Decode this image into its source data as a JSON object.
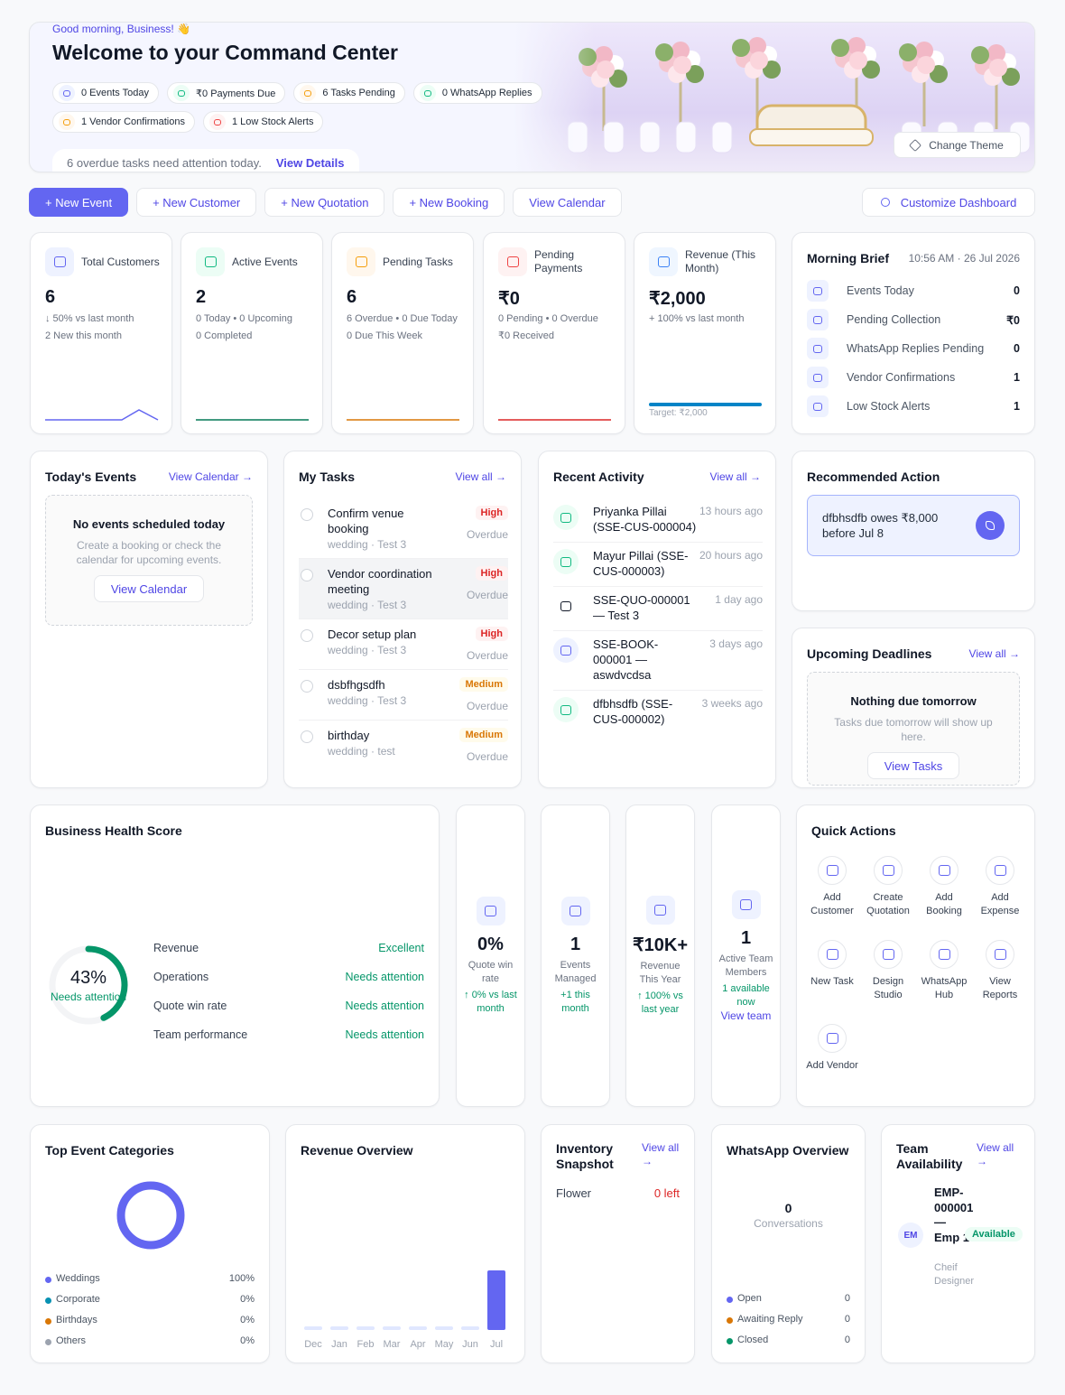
{
  "header": {
    "greeting": "Good morning, Business! 👋",
    "title": "Welcome to your Command Center",
    "chips": [
      "0 Events Today",
      "₹0 Payments Due",
      "6 Tasks Pending",
      "0 WhatsApp Replies",
      "1 Vendor Confirmations",
      "1 Low Stock Alerts"
    ],
    "alert": "6 overdue tasks need attention today.",
    "alert_link": "View Details",
    "theme_button": "Change Theme"
  },
  "actions": [
    "+ New Event",
    "+ New Customer",
    "+ New Quotation",
    "+ New Booking",
    "View Calendar"
  ],
  "customize": "Customize Dashboard",
  "stats": [
    {
      "label": "Total Customers",
      "value": 6,
      "lines": [
        "↓ 50% vs last month",
        "2 New this month"
      ]
    },
    {
      "label": "Active Events",
      "value": 2,
      "lines": [
        "0 Today • 0 Upcoming",
        "0 Completed"
      ]
    },
    {
      "label": "Pending Tasks",
      "value": 6,
      "lines": [
        "6 Overdue • 0 Due Today",
        "0 Due This Week"
      ]
    },
    {
      "label": "Pending Payments",
      "value": "₹0",
      "lines": [
        "0 Pending • 0 Overdue",
        "₹0 Received"
      ]
    },
    {
      "label": "Revenue (This Month)",
      "value": "₹2,000",
      "lines": [
        "+ 100% vs last month"
      ],
      "target": "Target: ₹2,000"
    }
  ],
  "morning_brief": {
    "title": "Morning Brief",
    "time": "10:56 AM · 26 Jul 2026",
    "items": [
      {
        "label": "Events Today",
        "value": 0
      },
      {
        "label": "Pending Collection",
        "value": "₹0"
      },
      {
        "label": "WhatsApp Replies Pending",
        "value": 0
      },
      {
        "label": "Vendor Confirmations",
        "value": 1
      },
      {
        "label": "Low Stock Alerts",
        "value": 1
      }
    ]
  },
  "todays_events": {
    "title": "Today's Events",
    "link": "View Calendar →",
    "empty_title": "No events scheduled today",
    "empty_text": "Create a booking or check the calendar for upcoming events.",
    "button": "View Calendar"
  },
  "my_tasks": {
    "title": "My Tasks",
    "link": "View all →",
    "tasks": [
      {
        "title": "Confirm venue booking",
        "meta": "wedding · Test 3",
        "priority": "High",
        "status": "Overdue"
      },
      {
        "title": "Vendor coordination meeting",
        "meta": "wedding · Test 3",
        "priority": "High",
        "status": "Overdue"
      },
      {
        "title": "Decor setup plan",
        "meta": "wedding · Test 3",
        "priority": "High",
        "status": "Overdue"
      },
      {
        "title": "dsbfhgsdfh",
        "meta": "wedding · Test 3",
        "priority": "Medium",
        "status": "Overdue"
      },
      {
        "title": "birthday",
        "meta": "wedding · test",
        "priority": "Medium",
        "status": "Overdue"
      }
    ]
  },
  "recent_activity": {
    "title": "Recent Activity",
    "link": "View all →",
    "items": [
      {
        "text": "Priyanka Pillai (SSE-CUS-000004)",
        "time": "13 hours ago"
      },
      {
        "text": "Mayur Pillai (SSE-CUS-000003)",
        "time": "20 hours ago"
      },
      {
        "text": "SSE-QUO-000001 — Test 3",
        "time": "1 day ago"
      },
      {
        "text": "SSE-BOOK-000001 — aswdvcdsa",
        "time": "3 days ago"
      },
      {
        "text": "dfbhsdfb (SSE-CUS-000002)",
        "time": "3 weeks ago"
      }
    ]
  },
  "recommended": {
    "title": "Recommended Action",
    "text": "dfbhsdfb owes ₹8,000 before Jul 8"
  },
  "upcoming": {
    "title": "Upcoming Deadlines",
    "link": "View all →",
    "empty_title": "Nothing due tomorrow",
    "empty_text": "Tasks due tomorrow will show up here.",
    "button": "View Tasks"
  },
  "health": {
    "title": "Business Health Score",
    "score": 43,
    "score_label": "43%",
    "status": "Needs attention",
    "rows": [
      {
        "name": "Revenue",
        "status": "Excellent"
      },
      {
        "name": "Operations",
        "status": "Needs attention"
      },
      {
        "name": "Quote win rate",
        "status": "Needs attention"
      },
      {
        "name": "Team performance",
        "status": "Needs attention"
      }
    ]
  },
  "kpis": [
    {
      "value": "0%",
      "label": "Quote win rate",
      "sub": "↑ 0% vs last month"
    },
    {
      "value": 1,
      "label": "Events Managed",
      "sub": "+1 this month"
    },
    {
      "value": "₹10K+",
      "label": "Revenue This Year",
      "sub": "↑ 100% vs last year"
    },
    {
      "value": 1,
      "label": "Active Team Members",
      "sub": "1 available now",
      "link": "View team"
    }
  ],
  "quick_actions": {
    "title": "Quick Actions",
    "items": [
      "Add Customer",
      "Create Quotation",
      "Add Booking",
      "Add Expense",
      "New Task",
      "Design Studio",
      "WhatsApp Hub",
      "View Reports",
      "Add Vendor"
    ]
  },
  "categories": {
    "title": "Top Event Categories",
    "items": [
      {
        "name": "Weddings",
        "color": "#6366f1",
        "value": 100,
        "label": "100%"
      },
      {
        "name": "Corporate",
        "color": "#0891b2",
        "value": 0,
        "label": "0%"
      },
      {
        "name": "Birthdays",
        "color": "#d97706",
        "value": 0,
        "label": "0%"
      },
      {
        "name": "Others",
        "color": "#9ca3af",
        "value": 0,
        "label": "0%"
      }
    ]
  },
  "revenue_overview": {
    "title": "Revenue Overview",
    "months": [
      "Dec",
      "Jan",
      "Feb",
      "Mar",
      "Apr",
      "May",
      "Jun",
      "Jul"
    ],
    "values": [
      0,
      0,
      0,
      0,
      0,
      0,
      0,
      2000
    ],
    "color": "#6366f1"
  },
  "inventory": {
    "title": "Inventory Snapshot",
    "link": "View all →",
    "items": [
      {
        "name": "Flower",
        "status": "0 left"
      }
    ]
  },
  "whatsapp": {
    "title": "WhatsApp Overview",
    "total": 0,
    "total_label": "Conversations",
    "items": [
      {
        "name": "Open",
        "value": 0,
        "color": "#6366f1"
      },
      {
        "name": "Awaiting Reply",
        "value": 0,
        "color": "#d97706"
      },
      {
        "name": "Closed",
        "value": 0,
        "color": "#059669"
      }
    ]
  },
  "team": {
    "title": "Team Availability",
    "link": "View all →",
    "members": [
      {
        "initials": "EM",
        "name": "EMP-000001 — Emp 1",
        "role": "Cheif Designer",
        "status": "Available"
      }
    ]
  }
}
